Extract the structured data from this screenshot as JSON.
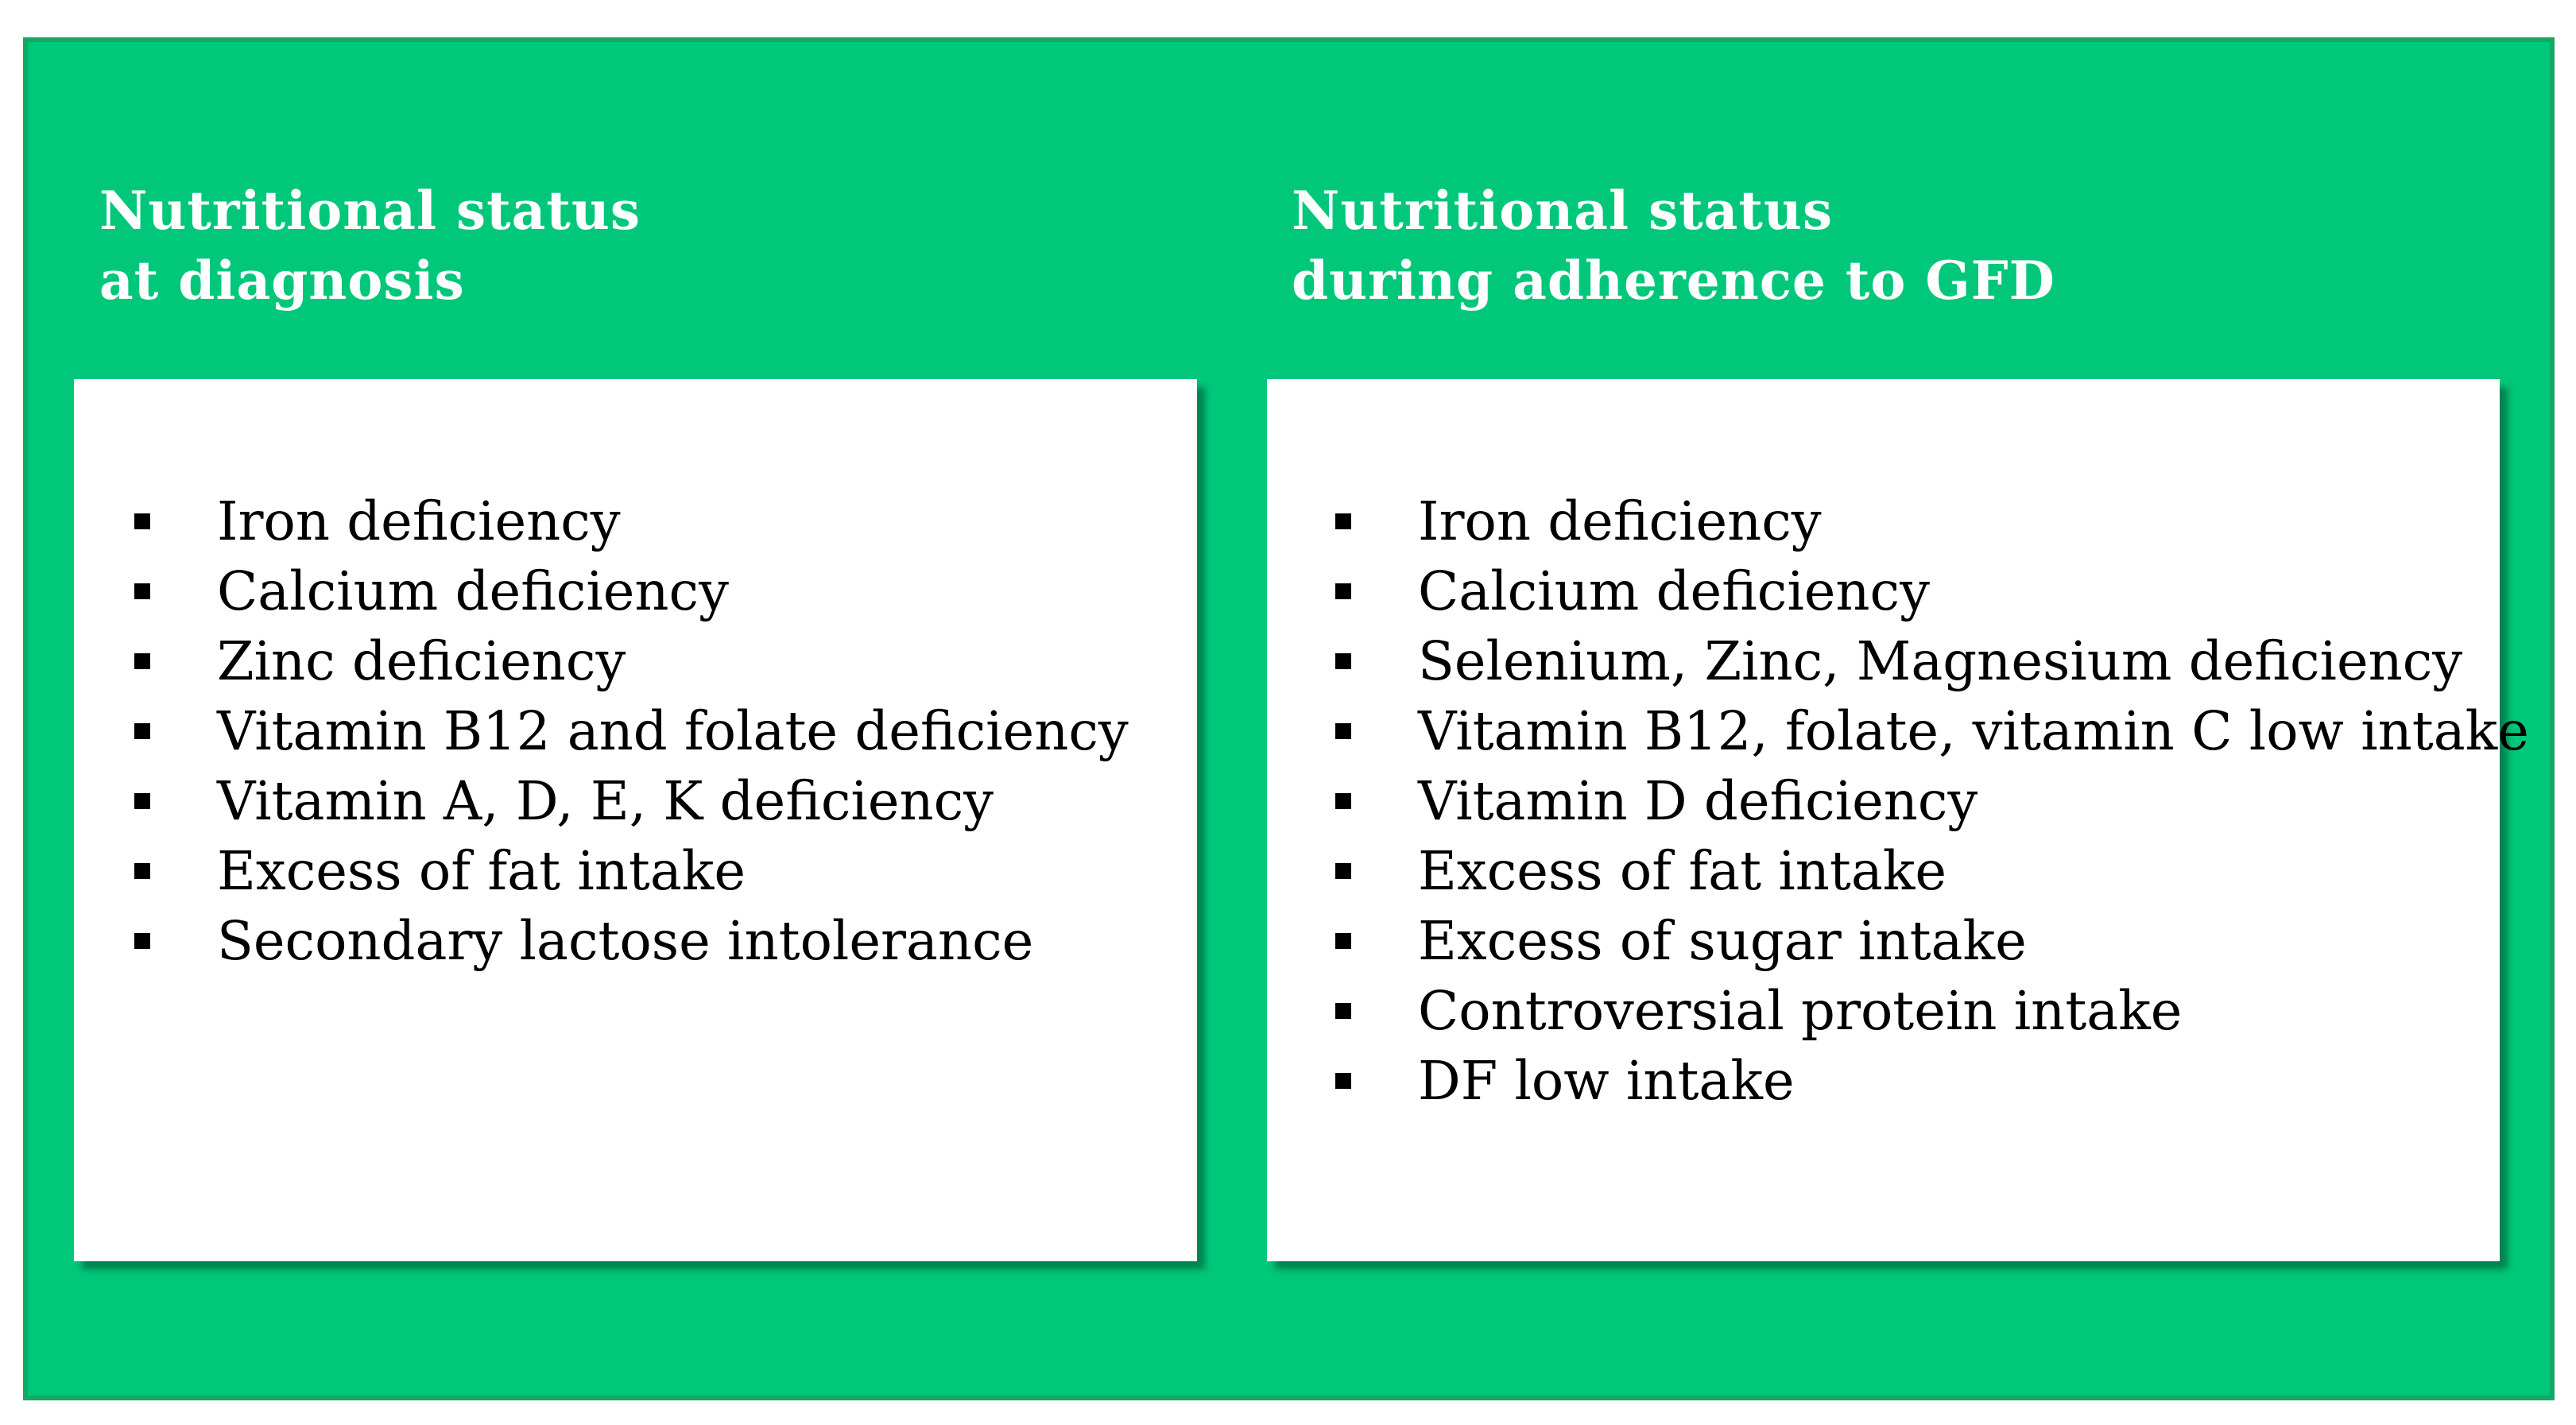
{
  "left": {
    "title": [
      "Nutritional status",
      "at diagnosis"
    ],
    "items": [
      "Iron deficiency",
      "Calcium deficiency",
      "Zinc deficiency",
      "Vitamin B12 and folate deficiency",
      "Vitamin A, D, E, K deficiency",
      "Excess of fat intake",
      "Secondary lactose intolerance"
    ]
  },
  "right": {
    "title": [
      "Nutritional status",
      "during adherence to GFD"
    ],
    "items": [
      "Iron deficiency",
      "Calcium deficiency",
      "Selenium, Zinc, Magnesium deficiency",
      "Vitamin B12, folate, vitamin C low intake",
      "Vitamin D deficiency",
      "Excess of fat intake",
      "Excess of sugar intake",
      "Controversial protein intake",
      "DF low intake"
    ]
  },
  "colors": {
    "background": "#00c77a",
    "border": "#13a863",
    "panel": "#ffffff"
  }
}
